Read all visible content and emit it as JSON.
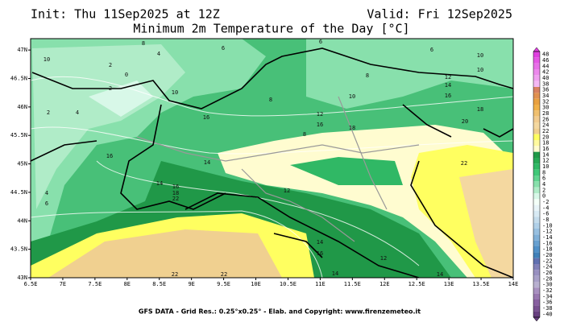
{
  "header": {
    "init": "Init: Thu 11Sep2025 at 12Z",
    "valid": "Valid: Fri 12Sep2025",
    "title": "Minimum 2m Temperature of the Day [°C]"
  },
  "map": {
    "xlim": [
      6.5,
      14
    ],
    "ylim": [
      43,
      47.2
    ],
    "xticks": [
      {
        "value": 6.5,
        "label": "6.5E"
      },
      {
        "value": 7,
        "label": "7E"
      },
      {
        "value": 7.5,
        "label": "7.5E"
      },
      {
        "value": 8,
        "label": "8E"
      },
      {
        "value": 8.5,
        "label": "8.5E"
      },
      {
        "value": 9,
        "label": "9E"
      },
      {
        "value": 9.5,
        "label": "9.5E"
      },
      {
        "value": 10,
        "label": "10E"
      },
      {
        "value": 10.5,
        "label": "10.5E"
      },
      {
        "value": 11,
        "label": "11E"
      },
      {
        "value": 11.5,
        "label": "11.5E"
      },
      {
        "value": 12,
        "label": "12E"
      },
      {
        "value": 12.5,
        "label": "12.5E"
      },
      {
        "value": 13,
        "label": "13E"
      },
      {
        "value": 13.5,
        "label": "13.5E"
      },
      {
        "value": 14,
        "label": "14E"
      }
    ],
    "yticks": [
      {
        "value": 43,
        "label": "43N"
      },
      {
        "value": 43.5,
        "label": "43.5N"
      },
      {
        "value": 44,
        "label": "44N"
      },
      {
        "value": 44.5,
        "label": "44.5N"
      },
      {
        "value": 45,
        "label": "45N"
      },
      {
        "value": 45.5,
        "label": "45.5N"
      },
      {
        "value": 46,
        "label": "46N"
      },
      {
        "value": 46.5,
        "label": "46.5N"
      },
      {
        "value": 47,
        "label": "47N"
      }
    ],
    "contour_labels": [
      8,
      4,
      2,
      0,
      10,
      6,
      2,
      4,
      2,
      10,
      16,
      8,
      6,
      8,
      6,
      10,
      10,
      12,
      14,
      16,
      10,
      12,
      16,
      8,
      18,
      20,
      18,
      22,
      16,
      14,
      14,
      16,
      18,
      22,
      4,
      6,
      12,
      14,
      16,
      14,
      12,
      14,
      22,
      22
    ]
  },
  "colorbar": {
    "levels": [
      48,
      46,
      44,
      42,
      40,
      38,
      36,
      34,
      32,
      30,
      28,
      26,
      24,
      22,
      20,
      18,
      16,
      14,
      12,
      10,
      8,
      6,
      4,
      2,
      0,
      -2,
      -4,
      -6,
      -8,
      -10,
      -12,
      -14,
      -16,
      -18,
      -20,
      -22,
      -24,
      -26,
      -28,
      -30,
      -32,
      -34,
      -36,
      -38,
      -40
    ],
    "colors": [
      "#e040e0",
      "#e458e4",
      "#e870e8",
      "#ec88ec",
      "#f0a0f0",
      "#f4b8f4",
      "#d88060",
      "#e09050",
      "#e8a040",
      "#f0b048",
      "#f0c070",
      "#f2cc90",
      "#f4d8a0",
      "#f0d090",
      "#ffff60",
      "#fffaa0",
      "#fffcd0",
      "#209848",
      "#28a855",
      "#30b865",
      "#40c878",
      "#60d490",
      "#88e0ac",
      "#b0ecc8",
      "#d8f8e8",
      "#f4fff8",
      "#e8f4f8",
      "#d8eaf4",
      "#c4dcec",
      "#b0d0e8",
      "#98c0e0",
      "#80b0d8",
      "#68a0d0",
      "#5090c8",
      "#4080b8",
      "#6070b0",
      "#8080b8",
      "#9890c0",
      "#a8a0c8",
      "#b8b0d0",
      "#a890c0",
      "#9878b0",
      "#8860a0",
      "#785090",
      "#684080"
    ]
  },
  "footer": "GFS DATA - Grid Res.: 0.25°x0.25° - Elab. and Copyright: www.firenzemeteo.it"
}
